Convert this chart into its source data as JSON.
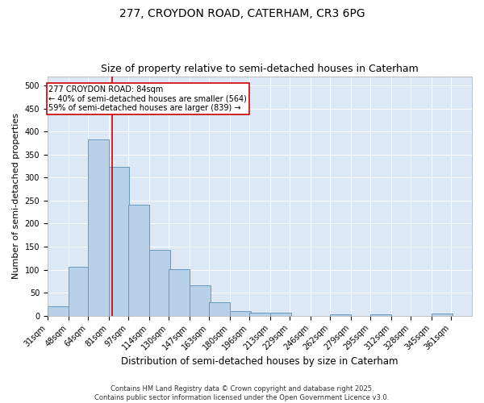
{
  "title1": "277, CROYDON ROAD, CATERHAM, CR3 6PG",
  "title2": "Size of property relative to semi-detached houses in Caterham",
  "xlabel": "Distribution of semi-detached houses by size in Caterham",
  "ylabel": "Number of semi-detached properties",
  "bin_edges": [
    31,
    48,
    64,
    81,
    97,
    114,
    130,
    147,
    163,
    180,
    196,
    213,
    229,
    246,
    262,
    279,
    295,
    312,
    328,
    345,
    361
  ],
  "bar_heights": [
    20,
    106,
    383,
    323,
    241,
    143,
    101,
    67,
    30,
    10,
    6,
    6,
    0,
    0,
    4,
    0,
    3,
    0,
    0,
    5
  ],
  "bar_color": "#b8d0e8",
  "bar_edge_color": "#6699bb",
  "property_size": 84,
  "red_line_color": "#cc0000",
  "annotation_line1": "277 CROYDON ROAD: 84sqm",
  "annotation_line2": "← 40% of semi-detached houses are smaller (564)",
  "annotation_line3": "59% of semi-detached houses are larger (839) →",
  "annotation_box_color": "#ffffff",
  "annotation_box_edge": "#cc0000",
  "ylim": [
    0,
    520
  ],
  "yticks": [
    0,
    50,
    100,
    150,
    200,
    250,
    300,
    350,
    400,
    450,
    500
  ],
  "background_color": "#dce8f5",
  "footer_text": "Contains HM Land Registry data © Crown copyright and database right 2025.\nContains public sector information licensed under the Open Government Licence v3.0.",
  "title1_fontsize": 10,
  "title2_fontsize": 9,
  "xlabel_fontsize": 8.5,
  "ylabel_fontsize": 8,
  "tick_fontsize": 7,
  "annotation_fontsize": 7,
  "footer_fontsize": 6
}
